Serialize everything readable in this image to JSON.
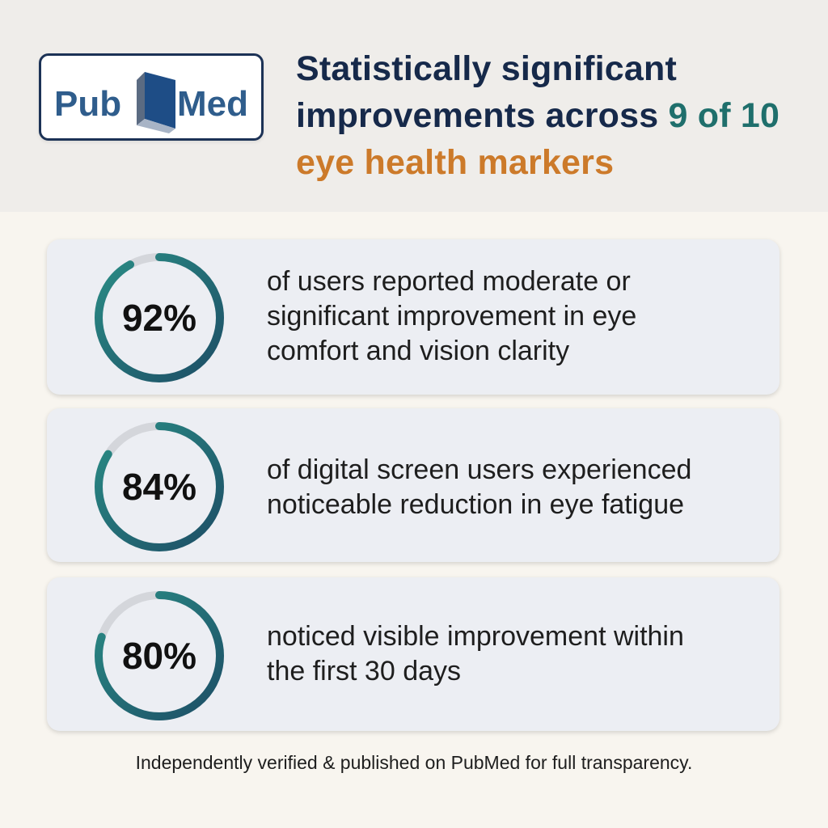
{
  "logo": {
    "text_left": "Pub",
    "text_right": "Med"
  },
  "headline": {
    "line1": "Statistically significant",
    "line2_prefix": "improvements across ",
    "line2_highlight": "9 of 10",
    "line3": "eye health markers"
  },
  "stats": [
    {
      "percent_label": "92%",
      "percent": 92,
      "line1": "of users reported moderate or",
      "line2": "significant improvement in eye",
      "line3": "comfort and vision clarity"
    },
    {
      "percent_label": "84%",
      "percent": 84,
      "line1": "of digital screen users experienced",
      "line2": "noticeable reduction in eye fatigue"
    },
    {
      "percent_label": "80%",
      "percent": 80,
      "line1": "noticed visible improvement within",
      "line2": "the first 30 days"
    }
  ],
  "footer": "Independently verified & published on PubMed for full transparency.",
  "colors": {
    "navy": "#16294a",
    "teal": "#1f6f6c",
    "orange": "#cc7a2a",
    "ring_start": "#1d4e66",
    "ring_end": "#2a8c85",
    "track": "#d4d6db"
  }
}
